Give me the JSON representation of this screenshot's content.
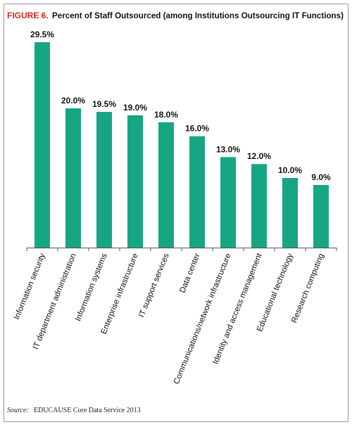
{
  "chart_data": {
    "type": "bar",
    "figure_label": "FIGURE 6.",
    "title": "Percent of Staff Outsourced (among Institutions Outsourcing IT Functions)",
    "categories": [
      "Information security",
      "IT department administration",
      "Information systems",
      "Enterprise infrastructure",
      "IT support services",
      "Data center",
      "Communications/network infrastructure",
      "Identity and access management",
      "Educational technology",
      "Research computing"
    ],
    "values": [
      29.5,
      20.0,
      19.5,
      19.0,
      18.0,
      16.0,
      13.0,
      12.0,
      10.0,
      9.0
    ],
    "value_labels": [
      "29.5%",
      "20.0%",
      "19.5%",
      "19.0%",
      "18.0%",
      "16.0%",
      "13.0%",
      "12.0%",
      "10.0%",
      "9.0%"
    ],
    "color": "#16a683",
    "source_label": "Source:",
    "source_text": "EDUCAUSE Core Data Service 2013"
  }
}
